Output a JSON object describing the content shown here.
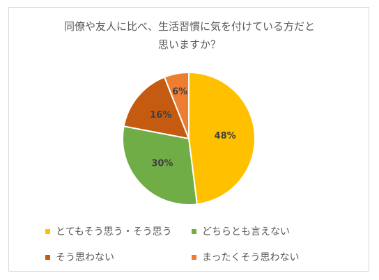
{
  "chart_data": {
    "type": "pie",
    "title_lines": [
      "同僚や友人に比べ、生活習慣に気を付けている方だと",
      "思いますか？"
    ],
    "slices": [
      {
        "label": "とてもそう思う・そう思う",
        "value": 48,
        "data_label": "48%",
        "color": "#FFC000"
      },
      {
        "label": "どちらとも言えない",
        "value": 30,
        "data_label": "30%",
        "color": "#70AD47"
      },
      {
        "label": "そう思わない",
        "value": 16,
        "data_label": "16%",
        "color": "#C55A11"
      },
      {
        "label": "まったくそう思わない",
        "value": 6,
        "data_label": "6%",
        "color": "#ED7D31"
      }
    ],
    "legend_position": "bottom",
    "start_angle_deg": 0,
    "direction": "clockwise"
  }
}
